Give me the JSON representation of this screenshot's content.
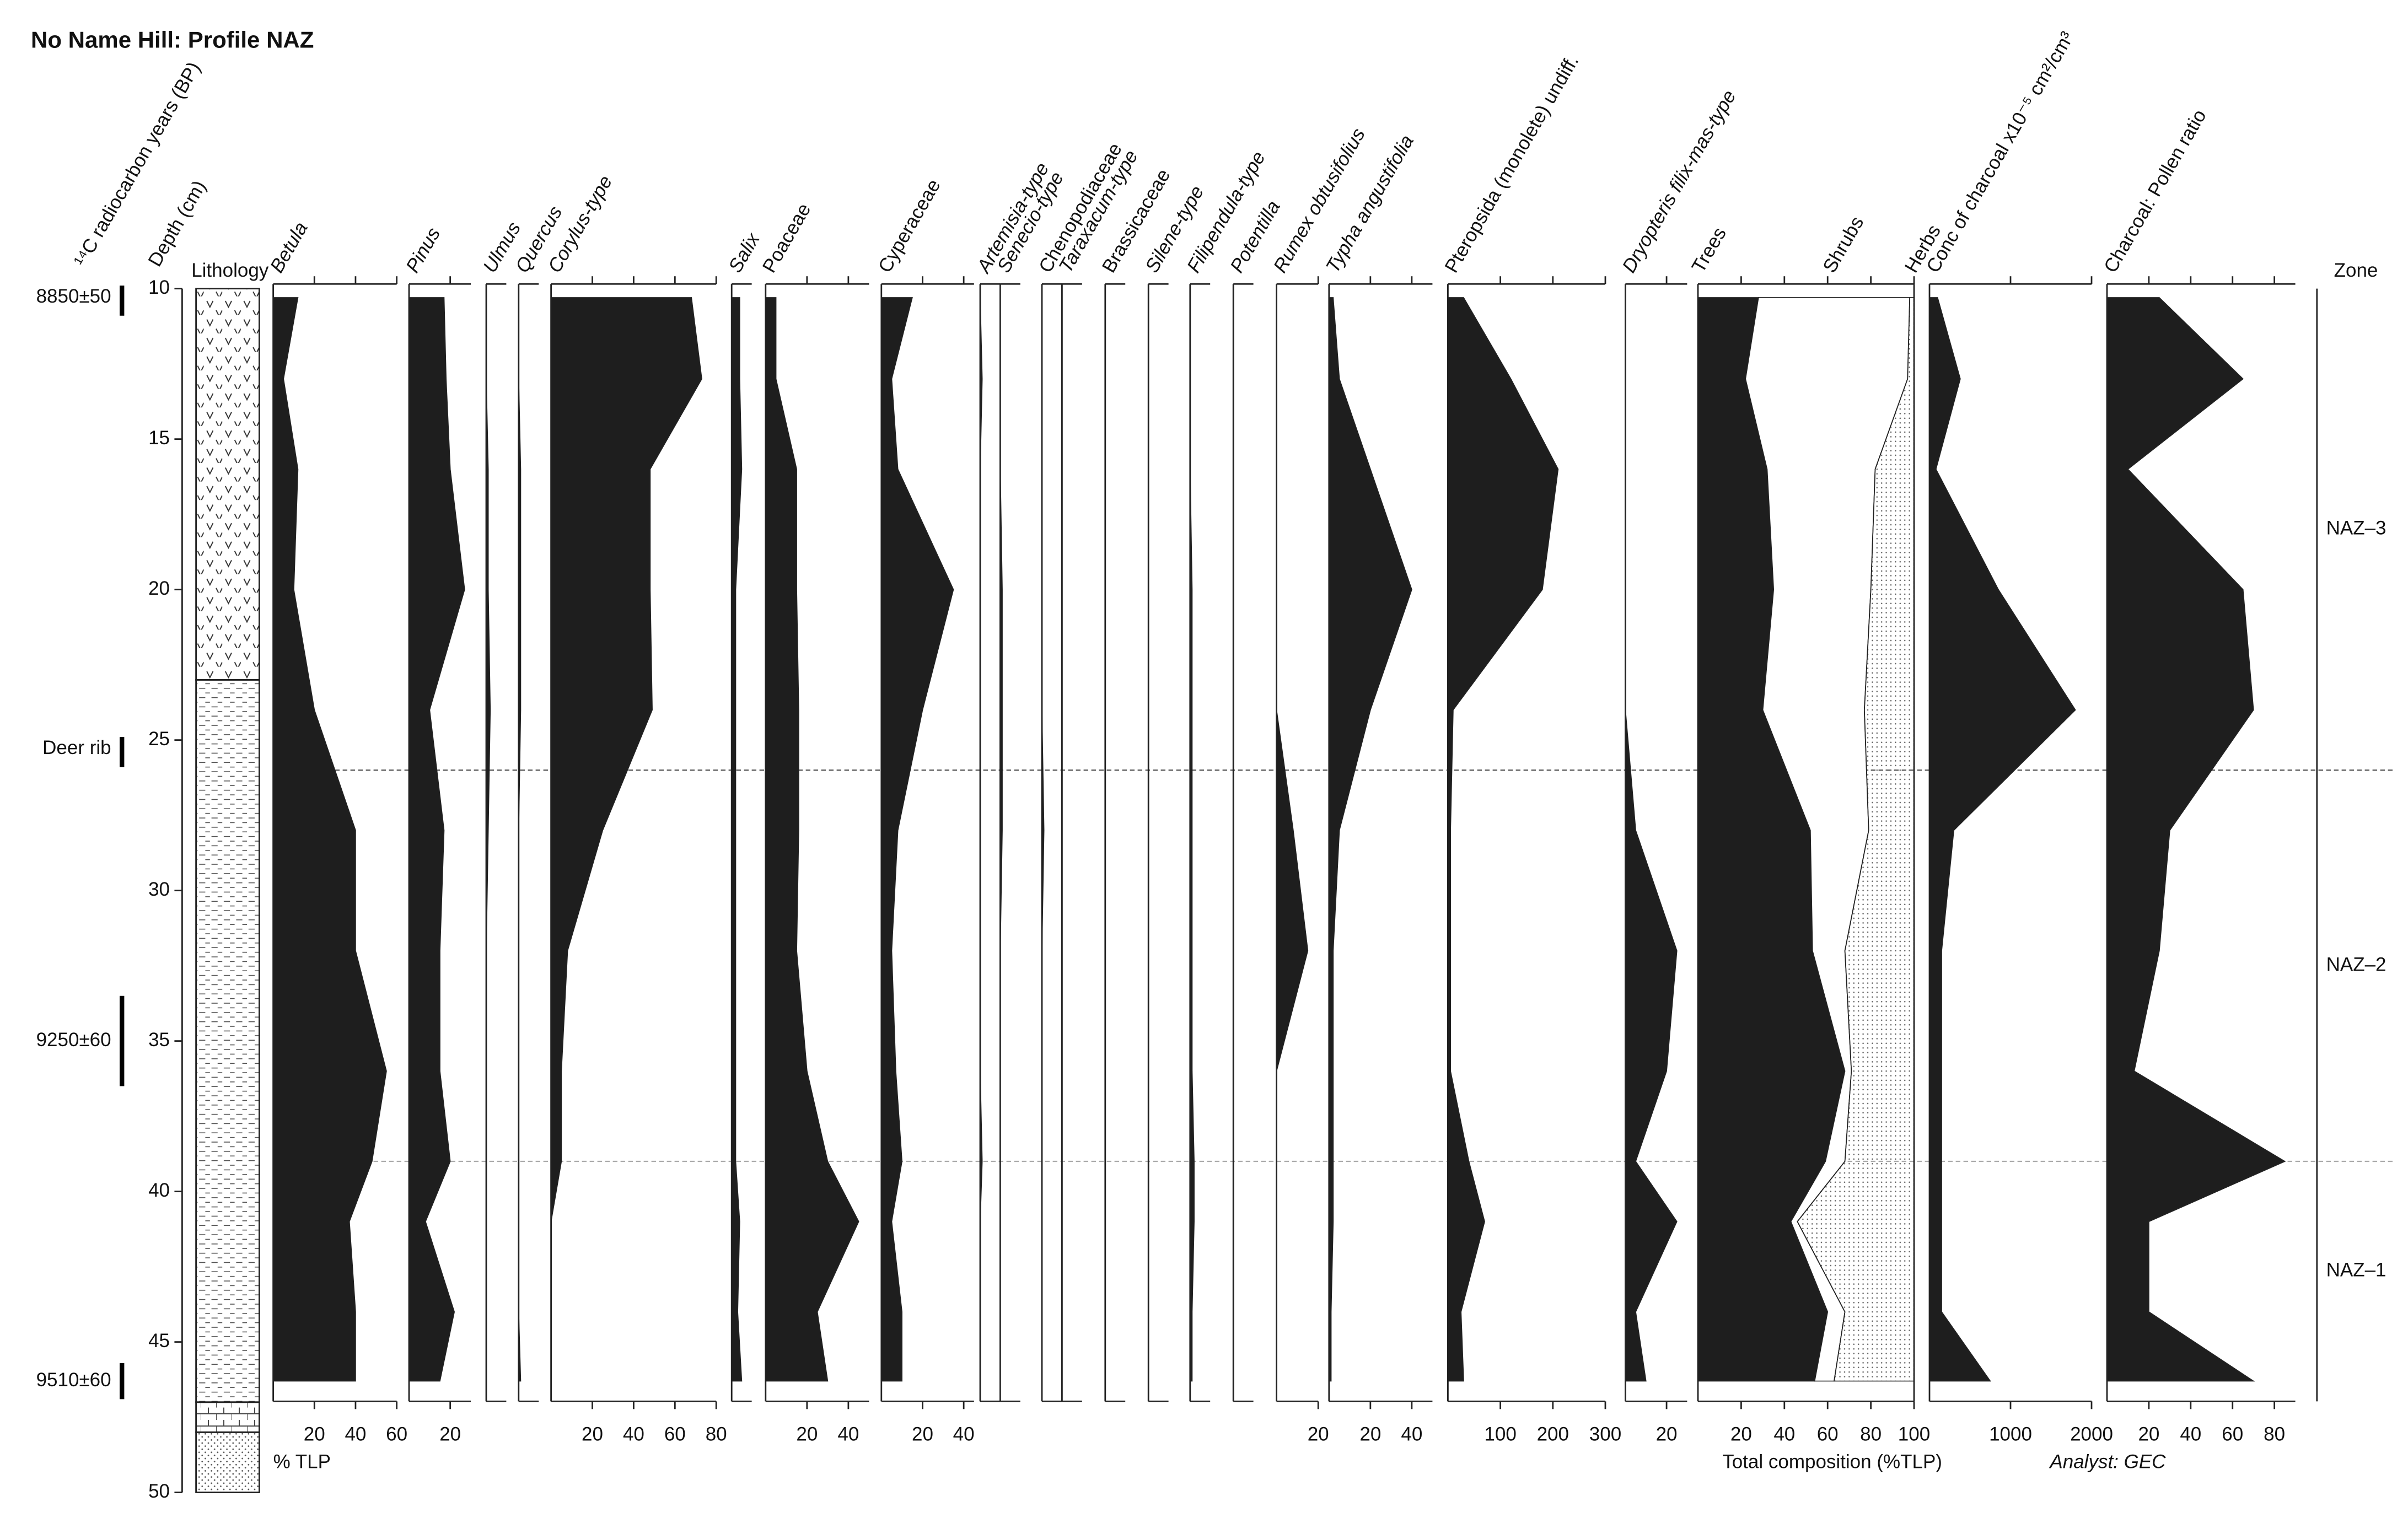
{
  "chart_data": {
    "type": "pollen-diagram",
    "title": "No Name Hill: Profile NAZ",
    "depth_label": "Depth (cm)",
    "date_label": "¹⁴C radiocarbon years (BP)",
    "lithology_label": "Lithology",
    "zone_label": "Zone",
    "x_label": "% TLP",
    "analyst": "Analyst: GEC",
    "ylim": [
      10,
      50
    ],
    "yticks": [
      10,
      15,
      20,
      25,
      30,
      35,
      40,
      45,
      50
    ],
    "depths": [
      10.3,
      13,
      16,
      20,
      24,
      28,
      32,
      36,
      39,
      41,
      44,
      46.3
    ],
    "dates": [
      {
        "label": "8850±50",
        "depth": 10.3,
        "bar": [
          9.9,
          10.9
        ]
      },
      {
        "label": "Deer rib",
        "depth": 25.3,
        "bar": [
          24.9,
          25.9
        ]
      },
      {
        "label": "9250±60",
        "depth": 35,
        "bar": [
          33.5,
          36.5
        ]
      },
      {
        "label": "9510±60",
        "depth": 46.3,
        "bar": [
          45.7,
          46.9
        ]
      }
    ],
    "lithology": [
      {
        "top": 10,
        "bottom": 23,
        "pattern": "v"
      },
      {
        "top": 23,
        "bottom": 47,
        "pattern": "dash"
      },
      {
        "top": 47,
        "bottom": 48,
        "pattern": "brick"
      },
      {
        "top": 48,
        "bottom": 50,
        "pattern": "dots"
      }
    ],
    "zones": [
      "NAZ–3",
      "NAZ–2",
      "NAZ–1"
    ],
    "zone_boundaries": [
      26,
      39
    ],
    "taxa": [
      {
        "name": "Betula",
        "italic": true,
        "xlim": [
          0,
          60
        ],
        "xticks": [
          20,
          40,
          60
        ],
        "values": [
          12,
          5,
          12,
          10,
          20,
          40,
          40,
          55,
          48,
          37,
          40,
          40
        ]
      },
      {
        "name": "Pinus",
        "italic": true,
        "xlim": [
          0,
          30
        ],
        "xticks": [
          20
        ],
        "values": [
          17,
          18,
          20,
          27,
          10,
          17,
          15,
          15,
          20,
          8,
          22,
          15
        ]
      },
      {
        "name": "Ulmus",
        "italic": true,
        "xlim": [
          0,
          10
        ],
        "xticks": [],
        "values": [
          0,
          0,
          1,
          1,
          2,
          1,
          0,
          0,
          0,
          0,
          0,
          0
        ]
      },
      {
        "name": "Quercus",
        "italic": true,
        "xlim": [
          0,
          10
        ],
        "xticks": [],
        "values": [
          0,
          0,
          1,
          1,
          1,
          0,
          0,
          0,
          0,
          0,
          0,
          1
        ]
      },
      {
        "name": "Corylus-type",
        "italic": true,
        "xlim": [
          0,
          80
        ],
        "xticks": [
          20,
          40,
          60,
          80
        ],
        "values": [
          68,
          73,
          48,
          48,
          49,
          25,
          8,
          5,
          5,
          0,
          0,
          0
        ]
      },
      {
        "name": "Salix",
        "italic": true,
        "xlim": [
          0,
          10
        ],
        "xticks": [],
        "values": [
          4,
          4,
          5,
          2,
          2,
          2,
          2,
          2,
          2,
          4,
          3,
          5
        ]
      },
      {
        "name": "Poaceae",
        "italic": false,
        "xlim": [
          0,
          50
        ],
        "xticks": [
          20,
          40
        ],
        "values": [
          5,
          5,
          15,
          15,
          16,
          16,
          15,
          20,
          30,
          45,
          25,
          30
        ]
      },
      {
        "name": "Cyperaceae",
        "italic": false,
        "xlim": [
          0,
          45
        ],
        "xticks": [
          20,
          40
        ],
        "values": [
          15,
          5,
          8,
          35,
          20,
          8,
          5,
          7,
          10,
          5,
          10,
          10
        ]
      },
      {
        "name": "Artemisia-type",
        "italic": true,
        "xlim": [
          0,
          10
        ],
        "xticks": [],
        "values": [
          0,
          1,
          0,
          0,
          0,
          0,
          0,
          0,
          1,
          0,
          0,
          0
        ]
      },
      {
        "name": "Senecio-type",
        "italic": true,
        "xlim": [
          0,
          10
        ],
        "xticks": [],
        "values": [
          0,
          0,
          0,
          1,
          1,
          1,
          0,
          0,
          0,
          0,
          0,
          0
        ]
      },
      {
        "name": "Chenopodiaceae",
        "italic": false,
        "xlim": [
          0,
          10
        ],
        "xticks": [],
        "values": [
          0,
          0,
          0,
          0,
          0,
          1,
          0,
          0,
          0,
          0,
          0,
          0
        ]
      },
      {
        "name": "Taraxacum-type",
        "italic": true,
        "xlim": [
          0,
          10
        ],
        "xticks": [],
        "values": [
          0,
          0,
          0,
          0,
          0,
          0,
          0,
          0,
          0,
          0,
          0,
          0
        ]
      },
      {
        "name": "Brassicaceae",
        "italic": false,
        "xlim": [
          0,
          10
        ],
        "xticks": [],
        "values": [
          0,
          0,
          0,
          0,
          0,
          0,
          0,
          0,
          0,
          0,
          0,
          0
        ]
      },
      {
        "name": "Silene-type",
        "italic": true,
        "xlim": [
          0,
          10
        ],
        "xticks": [],
        "values": [
          0,
          0,
          0,
          0,
          0,
          0,
          0,
          0,
          0,
          0,
          0,
          0
        ]
      },
      {
        "name": "Filipendula-type",
        "italic": true,
        "xlim": [
          0,
          10
        ],
        "xticks": [],
        "values": [
          0,
          0,
          0,
          1,
          1,
          1,
          1,
          1,
          2,
          2,
          1,
          1
        ]
      },
      {
        "name": "Potentilla",
        "italic": true,
        "xlim": [
          0,
          10
        ],
        "xticks": [],
        "values": [
          0,
          0,
          0,
          0,
          0,
          0,
          0,
          0,
          0,
          0,
          0,
          0
        ]
      },
      {
        "name": "Rumex obtusifolius",
        "italic": true,
        "xlim": [
          0,
          20
        ],
        "xticks": [
          20
        ],
        "values": [
          0,
          0,
          0,
          0,
          0,
          8,
          15,
          0,
          0,
          0,
          0,
          0
        ]
      },
      {
        "name": "Typha angustifolia",
        "italic": true,
        "xlim": [
          0,
          50
        ],
        "xticks": [
          20,
          40
        ],
        "values": [
          2,
          5,
          20,
          40,
          20,
          5,
          2,
          2,
          2,
          2,
          1,
          1
        ]
      },
      {
        "name": "Pteropsida (monolete) undiff.",
        "italic": false,
        "xlim": [
          0,
          300
        ],
        "xticks": [
          100,
          200,
          300
        ],
        "values": [
          30,
          120,
          210,
          180,
          10,
          5,
          5,
          5,
          40,
          70,
          25,
          30
        ]
      },
      {
        "name": "Dryopteris filix-mas-type",
        "italic": true,
        "xlim": [
          0,
          30
        ],
        "xticks": [
          20
        ],
        "values": [
          0,
          0,
          0,
          0,
          0,
          5,
          25,
          20,
          5,
          25,
          5,
          10
        ]
      }
    ],
    "total": {
      "label": "Total composition (%TLP)",
      "xlim": [
        0,
        100
      ],
      "xticks": [
        20,
        40,
        60,
        80,
        100
      ],
      "series": [
        {
          "name": "Trees",
          "color": "#1e1e1e",
          "values": [
            28,
            22,
            32,
            35,
            30,
            52,
            53,
            68,
            59,
            43,
            60,
            54
          ]
        },
        {
          "name": "Shrubs",
          "color": "#ffffff",
          "values": [
            70,
            75,
            50,
            45,
            47,
            27,
            15,
            3,
            9,
            3,
            8,
            9
          ]
        },
        {
          "name": "Herbs",
          "color": "stipple",
          "values": [
            2,
            3,
            18,
            20,
            23,
            21,
            32,
            29,
            32,
            54,
            32,
            37
          ]
        }
      ]
    },
    "charcoal": [
      {
        "name": "Conc of charcoal x10⁻⁵ cm²/cm³",
        "xlim": [
          0,
          2000
        ],
        "xticks": [
          1000,
          2000
        ],
        "values": [
          100,
          380,
          80,
          850,
          1800,
          300,
          150,
          150,
          150,
          150,
          150,
          750
        ]
      },
      {
        "name": "Charcoal: Pollen ratio",
        "xlim": [
          0,
          90
        ],
        "xticks": [
          20,
          40,
          60,
          80
        ],
        "values": [
          25,
          65,
          10,
          65,
          70,
          30,
          25,
          13,
          85,
          20,
          20,
          70
        ]
      }
    ]
  }
}
